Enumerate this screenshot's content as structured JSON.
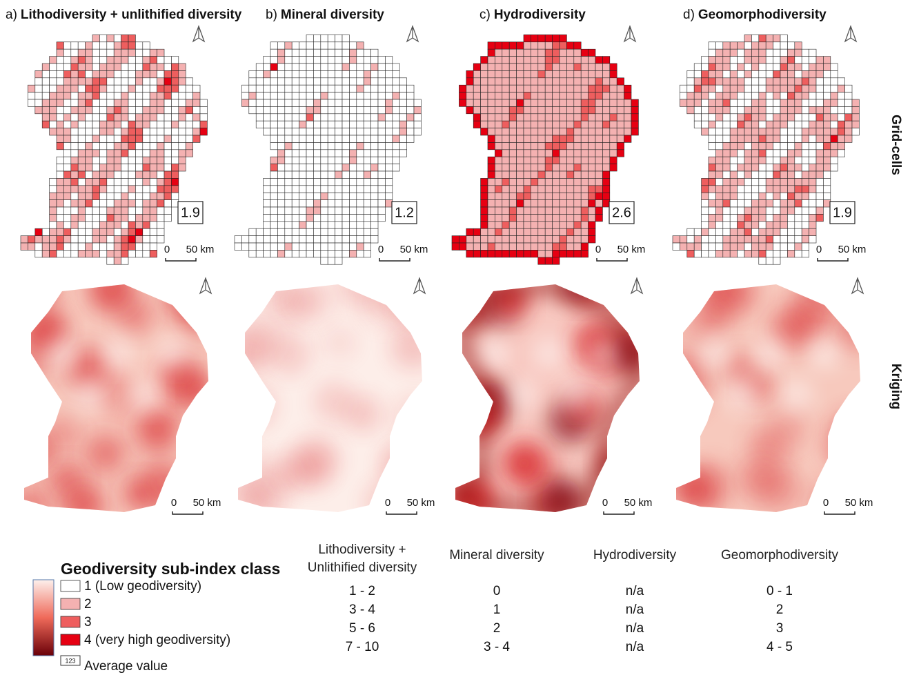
{
  "panels": [
    {
      "letter": "a)",
      "title": "Lithodiversity + unlithified diversity",
      "average": "1.9"
    },
    {
      "letter": "b)",
      "title": "Mineral diversity",
      "average": "1.2"
    },
    {
      "letter": "c)",
      "title": "Hydrodiversity",
      "average": "2.6"
    },
    {
      "letter": "d)",
      "title": "Geomorphodiversity",
      "average": "1.9"
    }
  ],
  "row_labels": [
    "Grid-cells",
    "Kriging"
  ],
  "scale_bar": {
    "start": "0",
    "end": "50 km"
  },
  "legend": {
    "title": "Geodiversity sub-index class",
    "items": [
      {
        "label": "1 (Low geodiversity)",
        "color": "#ffffff"
      },
      {
        "label": "2",
        "color": "#f4b1b1"
      },
      {
        "label": "3",
        "color": "#ee5e5e"
      },
      {
        "label": "4 (very high geodiversity)",
        "color": "#e60012"
      }
    ],
    "average_icon": "123",
    "average_label": "Average value"
  },
  "table": {
    "headers": [
      "Lithodiversity + Unlithified diversity",
      "Mineral diversity",
      "Hydrodiversity",
      "Geomorphodiversity"
    ],
    "rows": [
      [
        "1 - 2",
        "0",
        "n/a",
        "0 - 1"
      ],
      [
        "3 - 4",
        "1",
        "n/a",
        "2"
      ],
      [
        "5 - 6",
        "2",
        "n/a",
        "3"
      ],
      [
        "7 - 10",
        "3 - 4",
        "n/a",
        "4 - 5"
      ]
    ]
  }
}
